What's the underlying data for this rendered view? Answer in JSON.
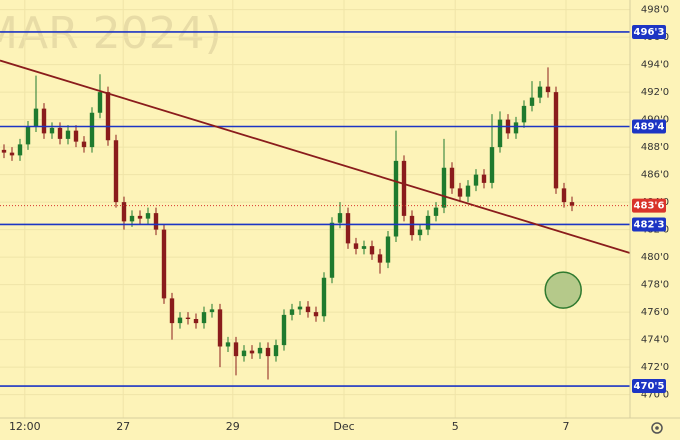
{
  "chart_data": {
    "type": "candlestick",
    "watermark": "MAR 2024)",
    "x": [
      0,
      1,
      2,
      3,
      4,
      5,
      6,
      7,
      8,
      9,
      10,
      11,
      12,
      13,
      14,
      15,
      16,
      17,
      18,
      19,
      20,
      21,
      22,
      23,
      24,
      25,
      26,
      27,
      28,
      29,
      30,
      31,
      32,
      33,
      34,
      35,
      36,
      37,
      38,
      39,
      40,
      41,
      42,
      43,
      44,
      45,
      46,
      47,
      48,
      49,
      50,
      51,
      52,
      53,
      54,
      55,
      56,
      57,
      58,
      59,
      60,
      61,
      62,
      63,
      64,
      65,
      66,
      67,
      68,
      69,
      70,
      71
    ],
    "open": [
      487.8,
      487.6,
      487.4,
      488.2,
      489.5,
      490.8,
      489.0,
      489.4,
      488.6,
      489.2,
      488.4,
      488.0,
      490.5,
      492.0,
      488.5,
      484.0,
      482.6,
      483.0,
      482.8,
      483.2,
      482.0,
      477.0,
      475.2,
      475.6,
      475.5,
      475.2,
      476.0,
      476.2,
      473.5,
      473.8,
      472.8,
      473.2,
      473.0,
      473.4,
      472.8,
      473.6,
      475.8,
      476.2,
      476.4,
      476.0,
      475.7,
      478.5,
      482.5,
      483.2,
      481.0,
      480.6,
      480.8,
      480.2,
      479.6,
      481.5,
      487.0,
      483.0,
      481.6,
      482.0,
      483.0,
      483.6,
      486.5,
      485.0,
      484.4,
      485.2,
      486.0,
      485.4,
      488.0,
      490.0,
      489.0,
      489.8,
      491.0,
      491.6,
      492.4,
      492.0,
      485.0,
      484.0
    ],
    "high": [
      488.2,
      488.0,
      488.6,
      489.9,
      493.2,
      491.2,
      489.8,
      489.8,
      489.6,
      489.6,
      488.8,
      490.9,
      493.3,
      492.4,
      488.9,
      484.4,
      483.4,
      483.4,
      483.6,
      483.6,
      482.4,
      477.4,
      476.0,
      476.0,
      475.9,
      476.4,
      476.6,
      476.6,
      474.2,
      474.2,
      473.6,
      473.6,
      473.8,
      473.8,
      474.0,
      476.2,
      476.6,
      476.8,
      476.8,
      476.4,
      478.9,
      482.9,
      484.0,
      483.6,
      481.4,
      481.2,
      481.2,
      480.6,
      481.9,
      489.2,
      487.4,
      483.4,
      482.4,
      483.4,
      484.0,
      488.6,
      486.9,
      485.4,
      485.6,
      486.4,
      486.4,
      490.4,
      490.6,
      490.4,
      490.2,
      491.4,
      492.8,
      492.8,
      493.8,
      492.4,
      485.4,
      484.4
    ],
    "low": [
      487.2,
      487.0,
      487.0,
      487.8,
      489.1,
      488.6,
      488.6,
      488.2,
      488.2,
      488.0,
      487.6,
      487.6,
      490.1,
      488.1,
      483.6,
      482.0,
      482.2,
      482.4,
      482.4,
      481.6,
      476.6,
      474.0,
      474.8,
      475.1,
      474.8,
      474.8,
      475.6,
      472.0,
      473.1,
      471.4,
      472.4,
      472.6,
      472.6,
      471.1,
      472.4,
      473.2,
      475.4,
      475.8,
      475.6,
      475.3,
      475.3,
      478.1,
      482.1,
      480.6,
      480.2,
      480.2,
      479.8,
      478.8,
      479.2,
      481.1,
      482.6,
      481.2,
      481.2,
      481.6,
      482.6,
      483.2,
      484.6,
      484.0,
      484.0,
      484.8,
      485.0,
      485.0,
      487.6,
      488.6,
      488.6,
      489.4,
      490.6,
      491.2,
      491.6,
      484.6,
      483.6,
      483.35
    ],
    "close": [
      487.6,
      487.4,
      488.2,
      489.5,
      490.8,
      489.0,
      489.4,
      488.6,
      489.2,
      488.4,
      488.0,
      490.5,
      492.0,
      488.5,
      484.0,
      482.6,
      483.0,
      482.8,
      483.2,
      482.0,
      477.0,
      475.2,
      475.6,
      475.5,
      475.2,
      476.0,
      476.2,
      473.5,
      473.8,
      472.8,
      473.2,
      473.0,
      473.4,
      472.8,
      473.6,
      475.8,
      476.2,
      476.4,
      476.0,
      475.7,
      478.5,
      482.5,
      483.2,
      481.0,
      480.6,
      480.8,
      480.2,
      479.6,
      481.5,
      487.0,
      483.0,
      481.6,
      482.0,
      483.0,
      483.6,
      486.5,
      485.0,
      484.4,
      485.2,
      486.0,
      485.4,
      488.0,
      490.0,
      489.0,
      489.8,
      491.0,
      491.6,
      492.4,
      492.0,
      485.0,
      484.0,
      483.75
    ],
    "up_color": "#1f7a2e",
    "down_color": "#8a1c1c",
    "xlim": [
      -0.5,
      78.25
    ],
    "xticks": [
      {
        "value": 2.6,
        "label": "12:00"
      },
      {
        "value": 14.9,
        "label": "27"
      },
      {
        "value": 28.6,
        "label": "29"
      },
      {
        "value": 42.5,
        "label": "Dec"
      },
      {
        "value": 56.4,
        "label": "5"
      },
      {
        "value": 70.25,
        "label": "7"
      }
    ],
    "ylim": [
      468.3,
      498.7
    ],
    "yticks": [
      {
        "value": 498,
        "label": "498'0"
      },
      {
        "value": 496,
        "label": "496'0"
      },
      {
        "value": 494,
        "label": "494'0"
      },
      {
        "value": 492,
        "label": "492'0"
      },
      {
        "value": 490,
        "label": "490'0"
      },
      {
        "value": 488,
        "label": "488'0"
      },
      {
        "value": 486,
        "label": "486'0"
      },
      {
        "value": 484,
        "label": "484'0"
      },
      {
        "value": 482,
        "label": "482'0"
      },
      {
        "value": 480,
        "label": "480'0"
      },
      {
        "value": 478,
        "label": "478'0"
      },
      {
        "value": 476,
        "label": "476'0"
      },
      {
        "value": 474,
        "label": "474'0"
      },
      {
        "value": 472,
        "label": "472'0"
      },
      {
        "value": 470,
        "label": "470'0"
      }
    ],
    "grid": true,
    "hlines": [
      {
        "value": 496.375,
        "label": "496'3"
      },
      {
        "value": 489.5,
        "label": "489'4"
      },
      {
        "value": 482.375,
        "label": "482'3"
      },
      {
        "value": 470.625,
        "label": "470'5"
      }
    ],
    "hline_color": "#1d35c4",
    "last_price": {
      "value": 483.75,
      "label": "483'6"
    },
    "last_color": "#d9342b",
    "trendline": {
      "x": [
        -0.5,
        78.25
      ],
      "y": [
        494.3,
        480.3
      ],
      "color": "#8a1c1c"
    },
    "marker": {
      "x": 69.9,
      "y": 477.6,
      "color": "#b5c98a"
    }
  }
}
